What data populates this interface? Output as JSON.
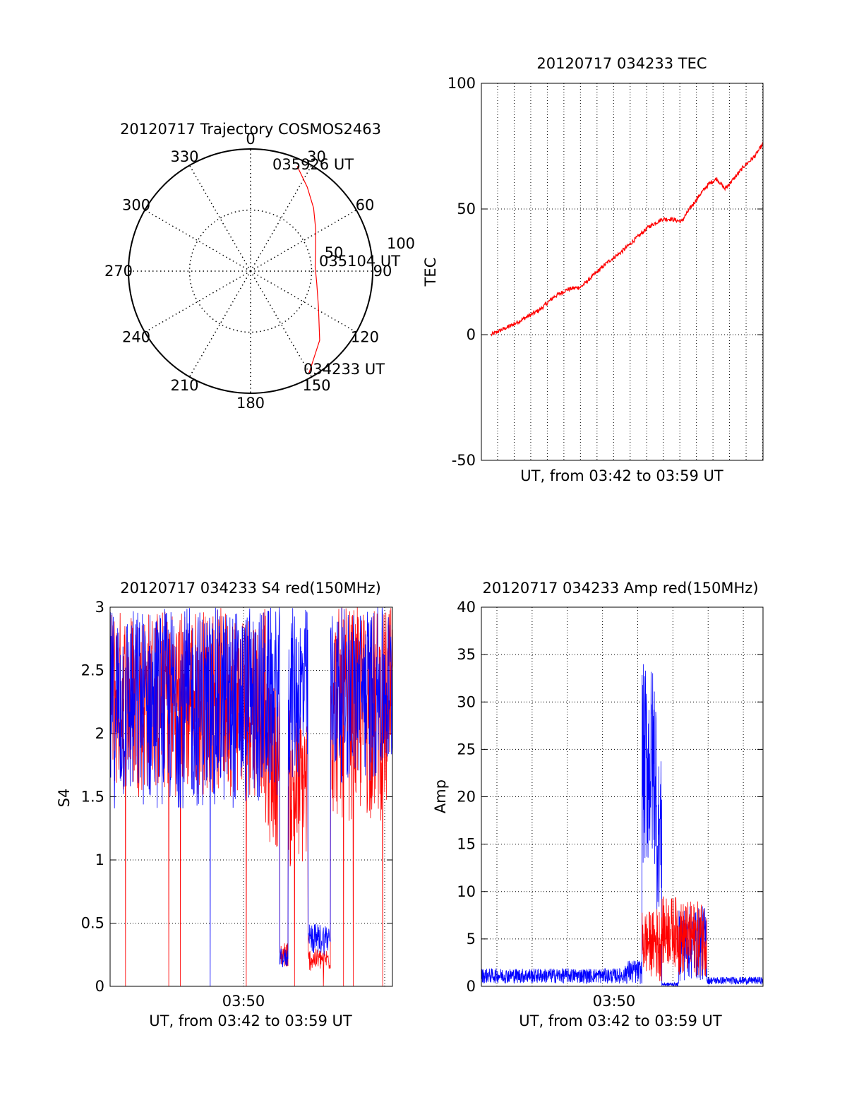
{
  "chart_data": [
    {
      "type": "polar",
      "title": "20120717 Trajectory COSMOS2463",
      "azimuth_labels": [
        "0",
        "30",
        "60",
        "90",
        "120",
        "150",
        "180",
        "210",
        "240",
        "270",
        "300",
        "330"
      ],
      "radial_labels": [
        "50",
        "100"
      ],
      "rlim": [
        0,
        100
      ],
      "grid": true,
      "series": [
        {
          "color": "#ff0000",
          "points": [
            {
              "az": 150,
              "r": 96
            },
            {
              "az": 135,
              "r": 80
            },
            {
              "az": 118,
              "r": 63
            },
            {
              "az": 100,
              "r": 55
            },
            {
              "az": 86,
              "r": 53
            },
            {
              "az": 72,
              "r": 56
            },
            {
              "az": 58,
              "r": 63
            },
            {
              "az": 45,
              "r": 73
            },
            {
              "az": 34,
              "r": 83
            },
            {
              "az": 24,
              "r": 94
            }
          ]
        }
      ],
      "annotations": [
        "034233 UT",
        "035104 UT",
        "035926 UT"
      ]
    },
    {
      "type": "line",
      "title": "20120717 034233 TEC",
      "xlabel": "UT, from 03:42 to 03:59 UT",
      "ylabel": "TEC",
      "ylim": [
        -50,
        100
      ],
      "yticks": [
        "-50",
        "0",
        "50",
        "100"
      ],
      "grid": true,
      "series": [
        {
          "color": "#ff0000",
          "t": [
            0,
            0.04,
            0.08,
            0.13,
            0.18,
            0.23,
            0.28,
            0.33,
            0.38,
            0.43,
            0.48,
            0.53,
            0.58,
            0.63,
            0.66,
            0.7,
            0.73,
            0.77,
            0.8,
            0.83,
            0.86,
            0.9,
            0.93,
            0.97,
            1.0
          ],
          "values": [
            0,
            2,
            4,
            7,
            10,
            15,
            18,
            19,
            24,
            29,
            33,
            38,
            43,
            46,
            46,
            45,
            50,
            56,
            60,
            62,
            58,
            63,
            67,
            71,
            76
          ]
        }
      ]
    },
    {
      "type": "line",
      "title": "20120717 034233 S4 red(150MHz)",
      "xlabel": "UT, from 03:42 to 03:59 UT",
      "ylabel": "S4",
      "ylim": [
        0,
        3
      ],
      "yticks": [
        "0",
        "0.5",
        "1",
        "1.5",
        "2",
        "2.5",
        "3"
      ],
      "xtick_labels": [
        "03:50"
      ],
      "grid": true,
      "segments": [
        {
          "t": [
            0.0,
            0.55
          ],
          "red": [
            1.5,
            3.0
          ],
          "blue": [
            1.4,
            3.0
          ]
        },
        {
          "t": [
            0.55,
            0.6
          ],
          "red": [
            1.1,
            2.4
          ],
          "blue": [
            1.5,
            3.0
          ]
        },
        {
          "t": [
            0.6,
            0.63
          ],
          "red": [
            0.15,
            0.35
          ],
          "blue": [
            0.14,
            0.3
          ]
        },
        {
          "t": [
            0.63,
            0.7
          ],
          "red": [
            0.9,
            2.2
          ],
          "blue": [
            1.6,
            3.0
          ]
        },
        {
          "t": [
            0.7,
            0.78
          ],
          "red": [
            0.12,
            0.3
          ],
          "blue": [
            0.25,
            0.5
          ]
        },
        {
          "t": [
            0.78,
            1.0
          ],
          "red": [
            1.3,
            3.0
          ],
          "blue": [
            1.6,
            3.0
          ]
        }
      ]
    },
    {
      "type": "line",
      "title": "20120717 034233 Amp red(150MHz)",
      "xlabel": "UT, from 03:42 to 03:59 UT",
      "ylabel": "Amp",
      "ylim": [
        0,
        40
      ],
      "yticks": [
        "0",
        "5",
        "10",
        "15",
        "20",
        "25",
        "30",
        "35",
        "40"
      ],
      "xtick_labels": [
        "03:50"
      ],
      "grid": true,
      "segments": [
        {
          "t": [
            0.0,
            0.51
          ],
          "blue": [
            0.3,
            1.9
          ]
        },
        {
          "t": [
            0.51,
            0.57
          ],
          "blue": [
            0.2,
            2.8
          ]
        },
        {
          "t": [
            0.57,
            0.62
          ],
          "blue": [
            12.0,
            34.0
          ],
          "red": [
            1.0,
            8.0
          ]
        },
        {
          "t": [
            0.62,
            0.64
          ],
          "blue": [
            8.0,
            24.0
          ],
          "red": [
            0.5,
            8.5
          ]
        },
        {
          "t": [
            0.64,
            0.7
          ],
          "blue": [
            0.0,
            0.4
          ],
          "red": [
            2.0,
            9.5
          ]
        },
        {
          "t": [
            0.7,
            0.8
          ],
          "blue": [
            0.5,
            8.5
          ],
          "red": [
            1.0,
            9.0
          ]
        },
        {
          "t": [
            0.8,
            1.0
          ],
          "blue": [
            0.2,
            1.0
          ]
        }
      ]
    }
  ]
}
